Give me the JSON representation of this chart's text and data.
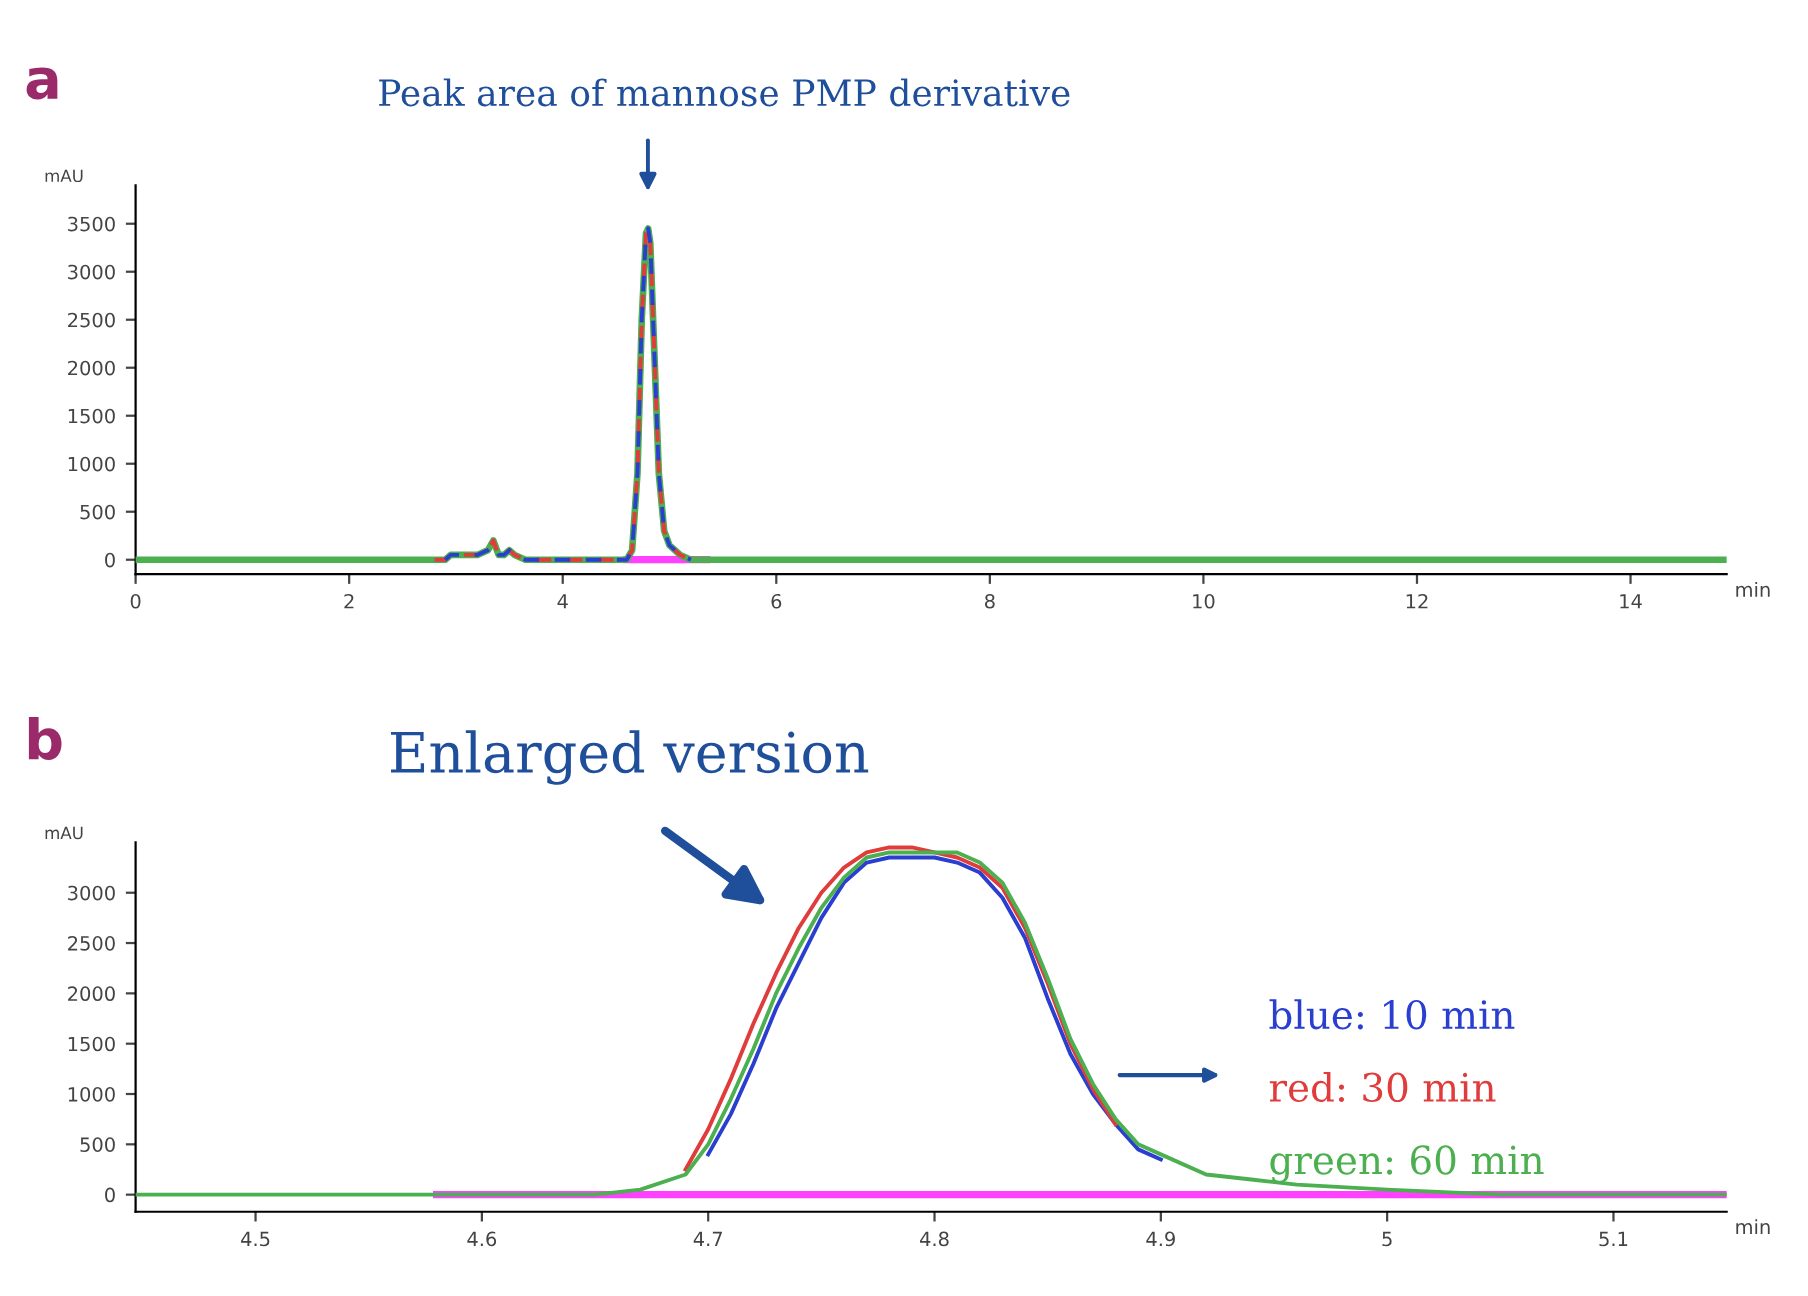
{
  "chart_data": [
    {
      "type": "line",
      "title": "a",
      "xlabel": "min",
      "ylabel": "mAU",
      "xlim": [
        0,
        14.9
      ],
      "ylim": [
        -150,
        3900
      ],
      "xticks": [
        0,
        2,
        4,
        6,
        8,
        10,
        12,
        14
      ],
      "yticks": [
        0,
        500,
        1000,
        1500,
        2000,
        2500,
        3000,
        3500
      ],
      "grid": false,
      "legend": false,
      "annotations": [
        "Peak area of mannose PMP derivative"
      ],
      "series": [
        {
          "color": "#ff40ff",
          "line_style": "solid",
          "x": [
            4.6,
            5.35
          ],
          "values": [
            0,
            0
          ]
        },
        {
          "color": "#4caf50",
          "line_style": "solid",
          "x": [
            0,
            2.8,
            2.9,
            2.95,
            3.0,
            3.05,
            3.1,
            3.2,
            3.3,
            3.35,
            3.4,
            3.45,
            3.5,
            3.55,
            3.65,
            3.75,
            4.6,
            4.65,
            4.7,
            4.74,
            4.78,
            4.8,
            4.82,
            4.86,
            4.9,
            4.95,
            5.0,
            5.1,
            5.2,
            14.9
          ],
          "values": [
            0,
            0,
            0,
            50,
            50,
            50,
            50,
            50,
            100,
            200,
            50,
            50,
            100,
            50,
            0,
            0,
            0,
            100,
            900,
            2500,
            3400,
            3450,
            3300,
            2100,
            900,
            300,
            150,
            50,
            0,
            0
          ]
        },
        {
          "color": "#e03c3c",
          "line_style": "dashed",
          "x": [
            2.8,
            2.9,
            2.95,
            3.0,
            3.05,
            3.1,
            3.2,
            3.3,
            3.35,
            3.4,
            3.45,
            3.5,
            3.55,
            3.65,
            3.75,
            4.6,
            4.65,
            4.7,
            4.74,
            4.78,
            4.8,
            4.82,
            4.86,
            4.9,
            4.95,
            5.0,
            5.1,
            5.2
          ],
          "values": [
            0,
            0,
            50,
            50,
            50,
            50,
            50,
            100,
            200,
            50,
            50,
            100,
            50,
            0,
            0,
            0,
            100,
            900,
            2500,
            3400,
            3450,
            3300,
            2100,
            900,
            300,
            150,
            50,
            0
          ]
        },
        {
          "color": "#2a3fd0",
          "line_style": "dashed",
          "x": [
            2.9,
            2.95,
            3.0,
            3.05,
            3.1,
            3.2,
            3.3,
            3.35,
            3.4,
            3.45,
            3.5,
            3.55,
            3.65,
            3.75,
            4.6,
            4.65,
            4.7,
            4.74,
            4.78,
            4.8,
            4.82,
            4.86,
            4.9,
            4.95,
            5.0,
            5.1,
            5.2
          ],
          "values": [
            0,
            50,
            50,
            50,
            50,
            50,
            100,
            150,
            50,
            50,
            100,
            50,
            0,
            0,
            0,
            100,
            900,
            2500,
            3400,
            3450,
            3300,
            2100,
            900,
            300,
            150,
            50,
            0
          ]
        }
      ]
    },
    {
      "type": "line",
      "title": "b",
      "xlabel": "min",
      "ylabel": "mAU",
      "xlim": [
        4.447,
        5.15
      ],
      "ylim": [
        -170,
        3500
      ],
      "xticks": [
        4.5,
        4.6,
        4.7,
        4.8,
        4.9,
        5,
        5.1
      ],
      "yticks": [
        0,
        500,
        1000,
        1500,
        2000,
        2500,
        3000
      ],
      "grid": false,
      "legend": "right",
      "annotations": [
        "Enlarged version"
      ],
      "series": [
        {
          "color": "#ff40ff",
          "line_style": "solid",
          "x": [
            4.58,
            5.15
          ],
          "values": [
            0,
            0
          ]
        },
        {
          "name": "blue: 10 min",
          "color": "#2a3fd0",
          "line_style": "solid",
          "x": [
            4.7,
            4.71,
            4.72,
            4.73,
            4.74,
            4.75,
            4.76,
            4.77,
            4.78,
            4.79,
            4.8,
            4.81,
            4.82,
            4.83,
            4.84,
            4.85,
            4.86,
            4.87,
            4.88,
            4.89,
            4.9
          ],
          "values": [
            400,
            800,
            1300,
            1850,
            2300,
            2750,
            3100,
            3300,
            3350,
            3350,
            3350,
            3300,
            3200,
            2950,
            2550,
            1950,
            1400,
            1000,
            700,
            450,
            350
          ]
        },
        {
          "name": "red: 30 min",
          "color": "#e03c3c",
          "line_style": "solid",
          "x": [
            4.69,
            4.7,
            4.71,
            4.72,
            4.73,
            4.74,
            4.75,
            4.76,
            4.77,
            4.78,
            4.79,
            4.8,
            4.81,
            4.82,
            4.83,
            4.84,
            4.85,
            4.86,
            4.87,
            4.88
          ],
          "values": [
            250,
            650,
            1150,
            1700,
            2200,
            2650,
            3000,
            3250,
            3400,
            3450,
            3450,
            3400,
            3350,
            3250,
            3050,
            2650,
            2100,
            1500,
            1050,
            700
          ]
        },
        {
          "name": "green: 60 min",
          "color": "#4caf50",
          "line_style": "solid",
          "x": [
            4.447,
            4.58,
            4.65,
            4.67,
            4.69,
            4.7,
            4.71,
            4.72,
            4.73,
            4.74,
            4.75,
            4.76,
            4.77,
            4.78,
            4.79,
            4.8,
            4.81,
            4.82,
            4.83,
            4.84,
            4.85,
            4.86,
            4.87,
            4.88,
            4.89,
            4.9,
            4.92,
            4.94,
            4.96,
            5.0,
            5.05,
            5.15
          ],
          "values": [
            0,
            0,
            0,
            50,
            200,
            500,
            950,
            1450,
            2000,
            2450,
            2850,
            3150,
            3350,
            3400,
            3400,
            3400,
            3400,
            3300,
            3100,
            2700,
            2150,
            1550,
            1100,
            750,
            500,
            400,
            200,
            150,
            100,
            50,
            0,
            0
          ]
        }
      ]
    }
  ]
}
